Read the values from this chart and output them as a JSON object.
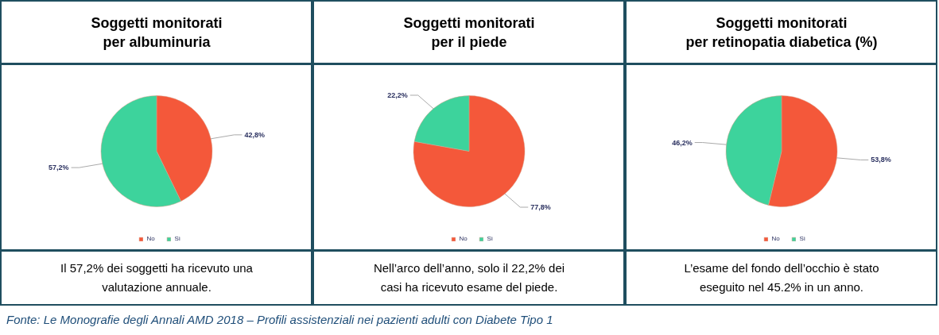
{
  "chart_data": [
    {
      "type": "pie",
      "title": "Soggetti monitorati\nper albuminuria",
      "categories": [
        "No",
        "Sì"
      ],
      "values": [
        42.8,
        57.2
      ],
      "colors": [
        "#f4583a",
        "#3dd39c"
      ],
      "value_labels": [
        "42,8%",
        "57,2%"
      ],
      "legend": "bottom",
      "annotations": [
        "Il 57,2% dei soggetti ha ricevuto una\nvalutazione annuale.",
        "Fonte: Le Monografie degli Annali AMD 2018 – Profili assistenziali nei pazienti adulti con Diabete Tipo 1"
      ]
    },
    {
      "type": "pie",
      "title": "Soggetti monitorati\nper il piede",
      "categories": [
        "No",
        "Sì"
      ],
      "values": [
        77.8,
        22.2
      ],
      "colors": [
        "#f4583a",
        "#3dd39c"
      ],
      "value_labels": [
        "77,8%",
        "22,2%"
      ],
      "legend": "bottom",
      "annotations": [
        "Nell’arco dell’anno, solo il 22,2% dei\ncasi ha ricevuto esame del piede."
      ]
    },
    {
      "type": "pie",
      "title": "Soggetti monitorati\nper retinopatia diabetica (%)",
      "categories": [
        "No",
        "Sì"
      ],
      "values": [
        53.8,
        46.2
      ],
      "colors": [
        "#f4583a",
        "#3dd39c"
      ],
      "value_labels": [
        "53,8%",
        "46,2%"
      ],
      "legend": "bottom",
      "annotations": [
        "L’esame del fondo dell’occhio è stato\neseguito nel 45.2% in un anno."
      ]
    }
  ]
}
